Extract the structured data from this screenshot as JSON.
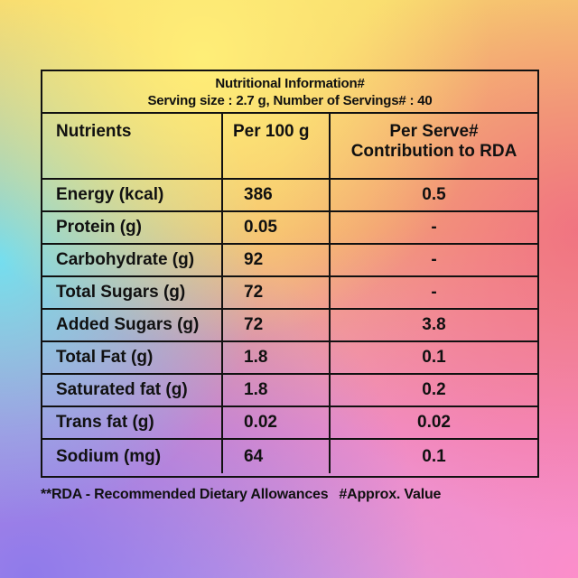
{
  "table": {
    "title": "Nutritional Information#",
    "subtitle": "Serving size : 2.7 g, Number of Servings# : 40",
    "columns": {
      "nutrients": "Nutrients",
      "per_100g": "Per 100 g",
      "per_serve_line1": "Per Serve#",
      "per_serve_line2": "Contribution to RDA"
    },
    "rows": [
      {
        "nutrient": "Energy (kcal)",
        "per_100g": "386",
        "per_serve": "0.5"
      },
      {
        "nutrient": "Protein (g)",
        "per_100g": "0.05",
        "per_serve": "-"
      },
      {
        "nutrient": "Carbohydrate (g)",
        "per_100g": "92",
        "per_serve": "-"
      },
      {
        "nutrient": "Total Sugars (g)",
        "per_100g": "72",
        "per_serve": "-"
      },
      {
        "nutrient": "Added Sugars (g)",
        "per_100g": "72",
        "per_serve": "3.8"
      },
      {
        "nutrient": "Total Fat (g)",
        "per_100g": "1.8",
        "per_serve": "0.1"
      },
      {
        "nutrient": "Saturated fat (g)",
        "per_100g": "1.8",
        "per_serve": "0.2"
      },
      {
        "nutrient": "Trans fat (g)",
        "per_100g": "0.02",
        "per_serve": "0.02"
      },
      {
        "nutrient": "Sodium (mg)",
        "per_100g": "64",
        "per_serve": "0.1"
      }
    ]
  },
  "footnote": {
    "rda": "**RDA - Recommended Dietary Allowances",
    "approx": "#Approx. Value"
  }
}
